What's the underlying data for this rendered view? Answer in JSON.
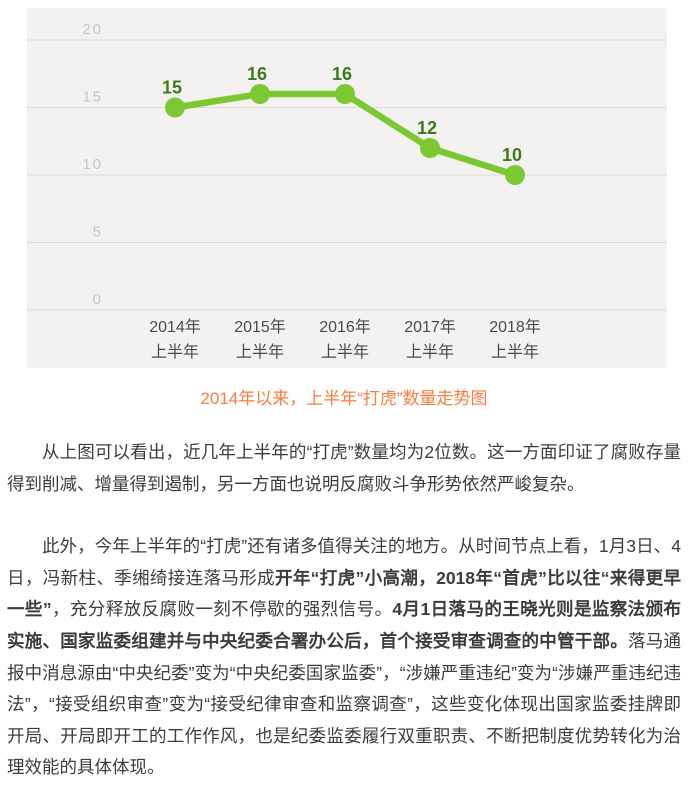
{
  "chart_data": {
    "type": "line",
    "title": "2014年以来，上半年“打虎”数量走势图",
    "categories": [
      {
        "top": "2014年",
        "bottom": "上半年"
      },
      {
        "top": "2015年",
        "bottom": "上半年"
      },
      {
        "top": "2016年",
        "bottom": "上半年"
      },
      {
        "top": "2017年",
        "bottom": "上半年"
      },
      {
        "top": "2018年",
        "bottom": "上半年"
      }
    ],
    "values": [
      15,
      16,
      16,
      12,
      10
    ],
    "yticks": [
      20,
      15,
      10,
      5,
      0
    ],
    "ylim": [
      0,
      20
    ],
    "grid": true,
    "legend": false,
    "colors": {
      "plot_bg": "#f4f2f0",
      "grid_line": "#dcdad8",
      "y_tick": "#c7c5c3",
      "x_tick": "#4a4a4a",
      "line": "#7cc832",
      "point": "#7cc832",
      "value_label": "#3d7a1b"
    }
  },
  "caption": {
    "text": "2014年以来，上半年“打虎”数量走势图",
    "color": "#fa7b3b"
  },
  "article": {
    "text_color": "#3c3c3c",
    "paragraphs": [
      {
        "segments": [
          {
            "text": "从上图可以看出，近几年上半年的“打虎”数量均为2位数。这一方面印证了腐败存量得到削减、增量得到遏制，另一方面也说明反腐败斗争形势依然严峻复杂。",
            "bold": false
          }
        ]
      },
      {
        "segments": [
          {
            "text": "此外，今年上半年的“打虎”还有诸多值得关注的地方。从时间节点上看，1月3日、4日，冯新柱、季缃绮接连落马形成",
            "bold": false
          },
          {
            "text": "开年“打虎”小高潮，2018年“首虎”比以往“来得更早一些”",
            "bold": true
          },
          {
            "text": "，充分释放反腐败一刻不停歇的强烈信号。",
            "bold": false
          },
          {
            "text": "4月1日落马的王晓光则是监察法颁布实施、国家监委组建并与中央纪委合署办公后，首个接受审查调查的中管干部。",
            "bold": true
          },
          {
            "text": "落马通报中消息源由“中央纪委”变为“中央纪委国家监委”，“涉嫌严重违纪”变为“涉嫌严重违纪违法”，“接受组织审查”变为“接受纪律审查和监察调查”，这些变化体现出国家监委挂牌即开局、开局即开工的工作作风，也是纪委监委履行双重职责、不断把制度优势转化为治理效能的具体体现。",
            "bold": false
          }
        ]
      }
    ]
  }
}
